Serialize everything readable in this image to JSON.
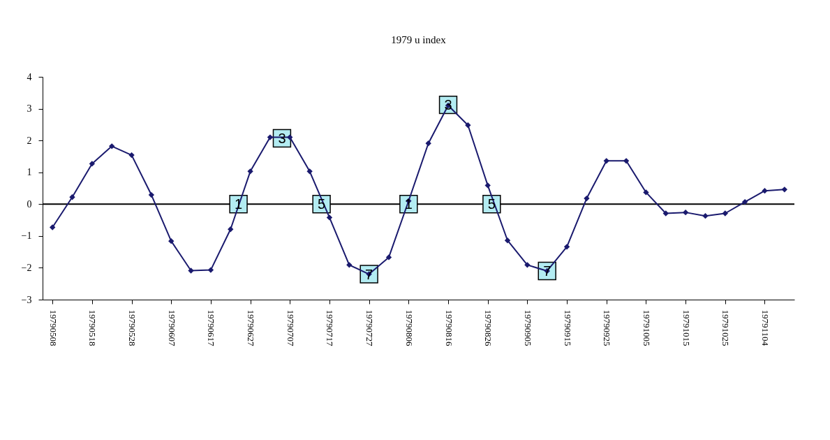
{
  "chart_data": {
    "type": "line",
    "title": "1979 u index",
    "x": [
      "1979-05-08",
      "1979-05-13",
      "1979-05-18",
      "1979-05-23",
      "1979-05-28",
      "1979-06-02",
      "1979-06-07",
      "1979-06-12",
      "1979-06-17",
      "1979-06-22",
      "1979-06-27",
      "1979-07-02",
      "1979-07-07",
      "1979-07-12",
      "1979-07-17",
      "1979-07-22",
      "1979-07-27",
      "1979-08-01",
      "1979-08-06",
      "1979-08-11",
      "1979-08-16",
      "1979-08-21",
      "1979-08-26",
      "1979-08-31",
      "1979-09-05",
      "1979-09-10",
      "1979-09-15",
      "1979-09-20",
      "1979-09-25",
      "1979-09-30",
      "1979-10-05",
      "1979-10-10",
      "1979-10-15",
      "1979-10-20",
      "1979-10-25",
      "1979-10-30",
      "1979-11-04",
      "1979-11-09"
    ],
    "series": [
      {
        "color": "#1a1a6e",
        "values": [
          -0.73,
          0.22,
          1.27,
          1.82,
          1.54,
          0.29,
          -1.16,
          -2.09,
          -2.07,
          -0.79,
          1.03,
          2.1,
          2.1,
          1.03,
          -0.42,
          -1.91,
          -2.2,
          -1.67,
          0.1,
          1.91,
          3.1,
          2.48,
          0.59,
          -1.14,
          -1.91,
          -2.1,
          -1.34,
          0.18,
          1.36,
          1.36,
          0.37,
          -0.29,
          -0.26,
          -0.37,
          -0.29,
          0.07,
          0.42,
          0.46
        ]
      }
    ],
    "marker": "diamond",
    "line_style": "solid",
    "grid": false,
    "xlim": [
      "1979-05-05T12:00",
      "1979-11-11T12:00"
    ],
    "xticks": [
      {
        "value": "1979-05-08",
        "label": "19790508"
      },
      {
        "value": "1979-05-18",
        "label": "19790518"
      },
      {
        "value": "1979-05-28",
        "label": "19790528"
      },
      {
        "value": "1979-06-07",
        "label": "19790607"
      },
      {
        "value": "1979-06-17",
        "label": "19790617"
      },
      {
        "value": "1979-06-27",
        "label": "19790627"
      },
      {
        "value": "1979-07-07",
        "label": "19790707"
      },
      {
        "value": "1979-07-17",
        "label": "19790717"
      },
      {
        "value": "1979-07-27",
        "label": "19790727"
      },
      {
        "value": "1979-08-06",
        "label": "19790806"
      },
      {
        "value": "1979-08-16",
        "label": "19790816"
      },
      {
        "value": "1979-08-26",
        "label": "19790826"
      },
      {
        "value": "1979-09-05",
        "label": "19790905"
      },
      {
        "value": "1979-09-15",
        "label": "19790915"
      },
      {
        "value": "1979-09-25",
        "label": "19790925"
      },
      {
        "value": "1979-10-05",
        "label": "19791005"
      },
      {
        "value": "1979-10-15",
        "label": "19791015"
      },
      {
        "value": "1979-10-25",
        "label": "19791025"
      },
      {
        "value": "1979-11-04",
        "label": "19791104"
      }
    ],
    "ylim": [
      -3,
      4
    ],
    "yticks": [
      -3,
      -2,
      -1,
      0,
      1,
      2,
      3,
      4
    ],
    "ref_lines": [
      {
        "axis": "y",
        "value": 0,
        "color": "#000000"
      }
    ],
    "annotations": [
      {
        "text": "1",
        "x": "1979-06-24",
        "y": 0
      },
      {
        "text": "3",
        "x": "1979-07-05",
        "y": 2.07
      },
      {
        "text": "5",
        "x": "1979-07-15",
        "y": 0
      },
      {
        "text": "7",
        "x": "1979-07-27",
        "y": -2.2
      },
      {
        "text": "1",
        "x": "1979-08-06",
        "y": 0
      },
      {
        "text": "3",
        "x": "1979-08-16",
        "y": 3.12
      },
      {
        "text": "5",
        "x": "1979-08-27",
        "y": 0
      },
      {
        "text": "7",
        "x": "1979-09-10",
        "y": -2.1
      }
    ]
  }
}
